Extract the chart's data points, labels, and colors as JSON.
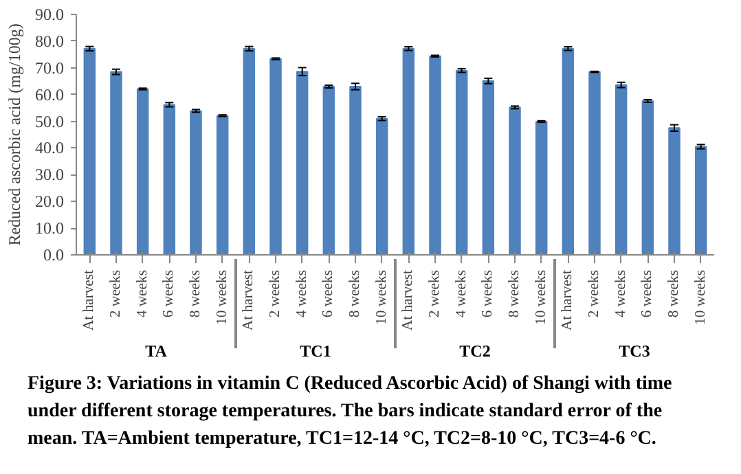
{
  "chart_data": {
    "type": "bar",
    "title": "Figure 3: Variations in vitamin C (Reduced Ascorbic Acid) of Shangi with time under different storage temperatures. The bars indicate standard error of the mean. TA=Ambient temperature, TC1=12-14 °C, TC2=8-10 °C, TC3=4-6 °C.",
    "ylabel": "Reduced ascorbic acid (mg/100g)",
    "categories": [
      "At harvest",
      "2 weeks",
      "4 weeks",
      "6 weeks",
      "8 weeks",
      "10 weeks",
      "At harvest",
      "2 weeks",
      "4 weeks",
      "6 weeks",
      "8 weeks",
      "10 weeks",
      "At harvest",
      "2 weeks",
      "4 weeks",
      "6 weeks",
      "8 weeks",
      "10 weeks",
      "At harvest",
      "2 weeks",
      "4 weeks",
      "6 weeks",
      "8 weeks",
      "10 weeks"
    ],
    "annotations": [
      "TA",
      "TC1",
      "TC2",
      "TC3"
    ],
    "values": [
      77.2,
      68.5,
      62.1,
      56.2,
      53.9,
      52.1,
      77.2,
      73.4,
      68.6,
      63.0,
      63.0,
      51.0,
      77.2,
      74.4,
      69.0,
      65.1,
      55.2,
      49.9,
      77.2,
      68.5,
      63.6,
      57.6,
      47.5,
      40.5
    ],
    "errors": [
      0.8,
      1.0,
      0.3,
      0.8,
      0.5,
      0.3,
      0.8,
      0.3,
      1.5,
      0.5,
      1.2,
      0.7,
      0.7,
      0.3,
      0.7,
      1.0,
      0.5,
      0.3,
      0.7,
      0.2,
      1.0,
      0.5,
      1.2,
      0.8
    ],
    "color": "#4f81bd",
    "ylim": [
      0,
      90
    ],
    "yticks": [
      {
        "value": 0,
        "label": "0.0"
      },
      {
        "value": 10,
        "label": "10.0"
      },
      {
        "value": 20,
        "label": "20.0"
      },
      {
        "value": 30,
        "label": "30.0"
      },
      {
        "value": 40,
        "label": "40.0"
      },
      {
        "value": 50,
        "label": "50.0"
      },
      {
        "value": 60,
        "label": "60.0"
      },
      {
        "value": 70,
        "label": "70.0"
      },
      {
        "value": 80,
        "label": "80.0"
      },
      {
        "value": 90,
        "label": "90.0"
      }
    ],
    "grid": false
  }
}
